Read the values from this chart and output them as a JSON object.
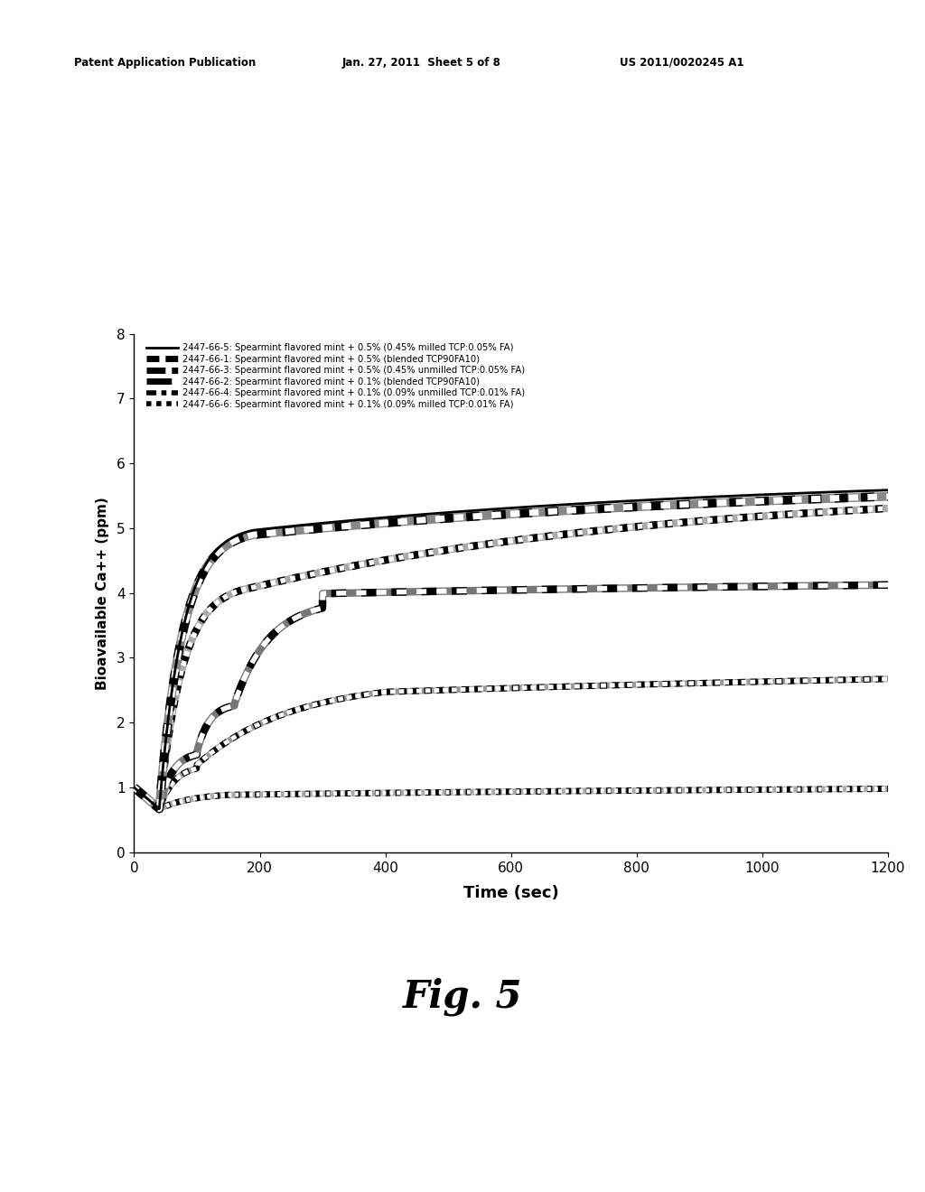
{
  "header_left": "Patent Application Publication",
  "header_center": "Jan. 27, 2011  Sheet 5 of 8",
  "header_right": "US 2011/0020245 A1",
  "fig_label": "Fig. 5",
  "xlabel": "Time (sec)",
  "ylabel": "Bioavailable Ca++ (ppm)",
  "xlim": [
    0,
    1200
  ],
  "ylim": [
    0,
    8
  ],
  "xticks": [
    0,
    200,
    400,
    600,
    800,
    1000,
    1200
  ],
  "yticks": [
    0,
    1,
    2,
    3,
    4,
    5,
    6,
    7,
    8
  ],
  "legend_entries": [
    "2447-66-5: Spearmint flavored mint + 0.5% (0.45% milled TCP:0.05% FA)",
    "2447-66-1: Spearmint flavored mint + 0.5% (blended TCP90FA10)",
    "2447-66-3: Spearmint flavored mint + 0.5% (0.45% unmilled TCP:0.05% FA)",
    "2447-66-2: Spearmint flavored mint + 0.1% (blended TCP90FA10)",
    "2447-66-4: Spearmint flavored mint + 0.1% (0.09% unmilled TCP:0.01% FA)",
    "2447-66-6: Spearmint flavored mint + 0.1% (0.09% milled TCP:0.01% FA)"
  ],
  "background_color": "#ffffff"
}
